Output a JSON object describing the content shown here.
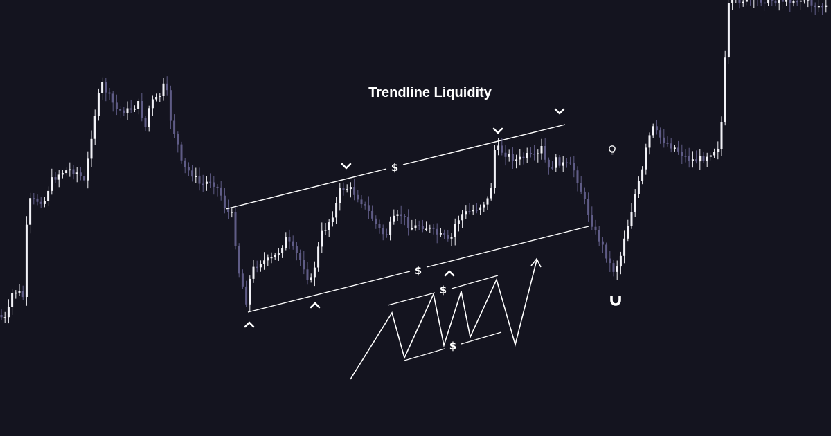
{
  "chart_data": {
    "type": "candlestick",
    "title": "Trendline Liquidity",
    "xlabel": "",
    "ylabel": "",
    "grid": false,
    "legend": "none",
    "colors": {
      "background": "#14141f",
      "bullish": "#f2f2f7",
      "bearish": "#5f5c86",
      "lines": "#ffffff"
    },
    "annotation_texts": {
      "upper_trendline_liquidity": "$",
      "lower_trendline_liquidity": "$",
      "zigzag_upper_liquidity": "$",
      "zigzag_lower_liquidity": "$"
    },
    "icons": [
      "chevron-down-icon",
      "chevron-up-icon",
      "lightbulb-icon",
      "magnet-icon",
      "arrow-up-icon"
    ]
  }
}
